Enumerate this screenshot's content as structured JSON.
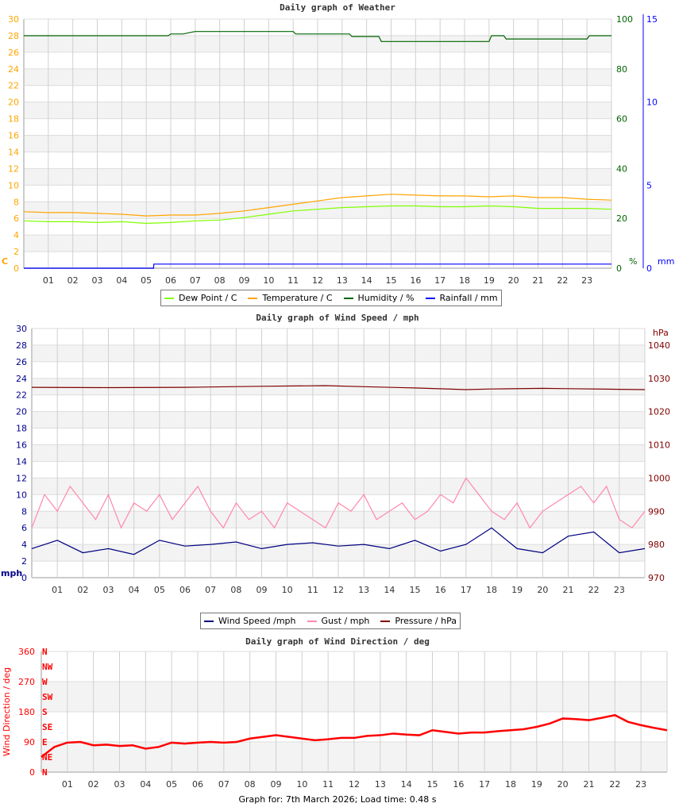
{
  "chart_data": [
    {
      "type": "line",
      "title": "Daily graph of Weather",
      "x_ticks": [
        "01",
        "02",
        "03",
        "04",
        "05",
        "06",
        "07",
        "08",
        "09",
        "10",
        "11",
        "12",
        "13",
        "14",
        "15",
        "16",
        "17",
        "18",
        "19",
        "20",
        "21",
        "22",
        "23"
      ],
      "xlim": [
        0,
        24
      ],
      "left_axis": {
        "unit": "C",
        "ylim": [
          0,
          30
        ],
        "ticks": [
          0,
          2,
          4,
          6,
          8,
          10,
          12,
          14,
          16,
          18,
          20,
          22,
          24,
          26,
          28,
          30
        ],
        "color": "#ffa500"
      },
      "right_axis_1": {
        "unit": "%",
        "ylim": [
          0,
          100
        ],
        "ticks": [
          0,
          20,
          40,
          60,
          80,
          100
        ],
        "color": "#006400"
      },
      "right_axis_2": {
        "unit": "mm",
        "ylim": [
          0,
          15
        ],
        "ticks": [
          0,
          5,
          10,
          15
        ],
        "color": "#0000ff"
      },
      "grid": true,
      "legend_placement": "bottom",
      "series": [
        {
          "name": "Dew Point / C",
          "axis": "left",
          "color": "#80ff00",
          "x": [
            0,
            1,
            2,
            3,
            4,
            5,
            6,
            7,
            8,
            9,
            10,
            11,
            12,
            13,
            14,
            15,
            16,
            17,
            18,
            19,
            20,
            21,
            22,
            23,
            24
          ],
          "values": [
            5.7,
            5.6,
            5.6,
            5.5,
            5.6,
            5.4,
            5.5,
            5.7,
            5.8,
            6.1,
            6.5,
            6.9,
            7.1,
            7.3,
            7.4,
            7.5,
            7.5,
            7.4,
            7.4,
            7.5,
            7.4,
            7.2,
            7.2,
            7.2,
            7.1
          ]
        },
        {
          "name": "Temperature / C",
          "axis": "left",
          "color": "#ffa500",
          "x": [
            0,
            1,
            2,
            3,
            4,
            5,
            6,
            7,
            8,
            9,
            10,
            11,
            12,
            13,
            14,
            15,
            16,
            17,
            18,
            19,
            20,
            21,
            22,
            23,
            24
          ],
          "values": [
            6.8,
            6.7,
            6.7,
            6.6,
            6.5,
            6.3,
            6.4,
            6.4,
            6.6,
            6.9,
            7.3,
            7.7,
            8.1,
            8.5,
            8.7,
            8.9,
            8.8,
            8.7,
            8.7,
            8.6,
            8.7,
            8.5,
            8.5,
            8.3,
            8.2
          ]
        },
        {
          "name": "Humidity / %",
          "axis": "right1",
          "color": "#006400",
          "x": [
            0,
            5.9,
            6,
            6.5,
            7,
            11,
            11.1,
            13.3,
            13.4,
            14.5,
            14.6,
            19,
            19.1,
            19.6,
            19.7,
            23,
            23.1,
            24
          ],
          "values": [
            93.3,
            93.3,
            94,
            94,
            95,
            95,
            94,
            94,
            93,
            93,
            91,
            91,
            93.3,
            93.3,
            92,
            92,
            93.3,
            93.3
          ]
        },
        {
          "name": "Rainfall / mm",
          "axis": "right2",
          "color": "#0000ff",
          "x": [
            0,
            5.3,
            5.31,
            24
          ],
          "values": [
            0,
            0,
            0.25,
            0.25
          ]
        }
      ]
    },
    {
      "type": "line",
      "title": "Daily graph of Wind Speed / mph",
      "x_ticks": [
        "01",
        "02",
        "03",
        "04",
        "05",
        "06",
        "07",
        "08",
        "09",
        "10",
        "11",
        "12",
        "13",
        "14",
        "15",
        "16",
        "17",
        "18",
        "19",
        "20",
        "21",
        "22",
        "23"
      ],
      "xlim": [
        0,
        24
      ],
      "left_axis": {
        "unit": "mph",
        "ylim": [
          0,
          30
        ],
        "ticks": [
          0,
          2,
          4,
          6,
          8,
          10,
          12,
          14,
          16,
          18,
          20,
          22,
          24,
          26,
          28,
          30
        ],
        "color": "#00008b"
      },
      "right_axis": {
        "unit": "hPa",
        "ylim": [
          970,
          1045
        ],
        "ticks": [
          970,
          980,
          990,
          1000,
          1010,
          1020,
          1030,
          1040
        ],
        "color": "#800000"
      },
      "grid": true,
      "legend_placement": "bottom",
      "series": [
        {
          "name": "Wind Speed /mph",
          "axis": "left",
          "color": "#000080",
          "x": [
            0,
            1,
            2,
            3,
            4,
            5,
            6,
            7,
            8,
            9,
            10,
            11,
            12,
            13,
            14,
            15,
            16,
            17,
            18,
            19,
            20,
            21,
            22,
            23,
            24
          ],
          "values": [
            3.5,
            4.5,
            3,
            3.5,
            2.8,
            4.5,
            3.8,
            4,
            4.3,
            3.5,
            4,
            4.2,
            3.8,
            4,
            3.5,
            4.5,
            3.2,
            4,
            6,
            3.5,
            3,
            5,
            5.5,
            3,
            3.5
          ]
        },
        {
          "name": "Gust / mph",
          "axis": "left",
          "color": "#ff88aa",
          "x": [
            0,
            0.5,
            1,
            1.5,
            2,
            2.5,
            3,
            3.5,
            4,
            4.5,
            5,
            5.5,
            6,
            6.5,
            7,
            7.5,
            8,
            8.5,
            9,
            9.5,
            10,
            10.5,
            11,
            11.5,
            12,
            12.5,
            13,
            13.5,
            14,
            14.5,
            15,
            15.5,
            16,
            16.5,
            17,
            17.5,
            18,
            18.5,
            19,
            19.5,
            20,
            20.5,
            21,
            21.5,
            22,
            22.5,
            23,
            23.5,
            24
          ],
          "values": [
            6,
            10,
            8,
            11,
            9,
            7,
            10,
            6,
            9,
            8,
            10,
            7,
            9,
            11,
            8,
            6,
            9,
            7,
            8,
            6,
            9,
            8,
            7,
            6,
            9,
            8,
            10,
            7,
            8,
            9,
            7,
            8,
            10,
            9,
            12,
            10,
            8,
            7,
            9,
            6,
            8,
            9,
            10,
            11,
            9,
            11,
            7,
            6,
            8
          ]
        },
        {
          "name": "Pressure / hPa",
          "axis": "right",
          "color": "#800000",
          "x": [
            0,
            3,
            6,
            9,
            11.5,
            13,
            15,
            17,
            18,
            20,
            21,
            23,
            24
          ],
          "values": [
            1027.3,
            1027.2,
            1027.3,
            1027.6,
            1027.8,
            1027.5,
            1027.1,
            1026.6,
            1026.8,
            1027.0,
            1026.9,
            1026.7,
            1026.6
          ]
        }
      ]
    },
    {
      "type": "scatter",
      "title": "Daily graph of Wind Direction / deg",
      "ylabel": "Wind Direction / deg",
      "x_ticks": [
        "01",
        "02",
        "03",
        "04",
        "05",
        "06",
        "07",
        "08",
        "09",
        "10",
        "11",
        "12",
        "13",
        "14",
        "15",
        "16",
        "17",
        "18",
        "19",
        "20",
        "21",
        "22",
        "23"
      ],
      "xlim": [
        0,
        24
      ],
      "ylim": [
        0,
        360
      ],
      "y_ticks": [
        0,
        90,
        180,
        270,
        360
      ],
      "compass_labels": [
        "N",
        "NE",
        "E",
        "SE",
        "S",
        "SW",
        "W",
        "NW",
        "N"
      ],
      "grid": true,
      "color": "#ff0000",
      "series": [
        {
          "name": "",
          "x": [
            0,
            0.5,
            1,
            1.5,
            2,
            2.5,
            3,
            3.5,
            4,
            4.5,
            5,
            5.5,
            6,
            6.5,
            7,
            7.5,
            8,
            8.5,
            9,
            9.5,
            10,
            10.5,
            11,
            11.5,
            12,
            12.5,
            13,
            13.5,
            14,
            14.5,
            15,
            15.5,
            16,
            16.5,
            17,
            17.5,
            18,
            18.5,
            19,
            19.5,
            20,
            20.5,
            21,
            21.5,
            22,
            22.5,
            23,
            23.5,
            24
          ],
          "values": [
            45,
            75,
            88,
            90,
            80,
            82,
            78,
            80,
            70,
            75,
            88,
            85,
            88,
            90,
            88,
            90,
            100,
            105,
            110,
            105,
            100,
            95,
            98,
            102,
            102,
            108,
            110,
            115,
            112,
            110,
            125,
            120,
            115,
            118,
            118,
            122,
            125,
            128,
            135,
            145,
            160,
            158,
            155,
            162,
            170,
            150,
            140,
            132,
            125
          ]
        }
      ]
    }
  ],
  "legends": [
    {
      "items": [
        {
          "label": "Dew Point / C",
          "color": "#80ff00"
        },
        {
          "label": "Temperature / C",
          "color": "#ffa500"
        },
        {
          "label": "Humidity / %",
          "color": "#006400"
        },
        {
          "label": "Rainfall / mm",
          "color": "#0000ff"
        }
      ]
    },
    {
      "items": [
        {
          "label": "Wind Speed /mph",
          "color": "#000080"
        },
        {
          "label": "Gust / mph",
          "color": "#ff88aa"
        },
        {
          "label": "Pressure / hPa",
          "color": "#800000"
        }
      ]
    }
  ],
  "footer": "Graph for: 7th March 2026; Load time: 0.48 s"
}
